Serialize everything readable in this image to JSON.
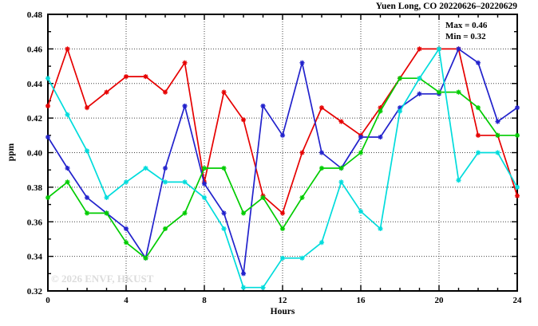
{
  "title": "Yuen Long, CO 20220626–20220629",
  "annotations": {
    "max": "Max = 0.46",
    "min": "Min = 0.32"
  },
  "watermark": "© 2026 ENVF, HKUST",
  "chart_data": {
    "type": "line",
    "title": "Yuen Long, CO 20220626–20220629",
    "xlabel": "Hours",
    "ylabel": "ppm",
    "xlim": [
      0,
      24
    ],
    "ylim": [
      0.32,
      0.48
    ],
    "grid": true,
    "legend": false,
    "x_major_ticks": [
      0,
      4,
      8,
      12,
      16,
      20,
      24
    ],
    "x_tick_labels": [
      "0",
      "4",
      "8",
      "12",
      "16",
      "20",
      "24"
    ],
    "x_minor_step": 1,
    "y_major_ticks": [
      0.32,
      0.34,
      0.36,
      0.38,
      0.4,
      0.42,
      0.44,
      0.46,
      0.48
    ],
    "y_tick_labels": [
      "0.32",
      "0.34",
      "0.36",
      "0.38",
      "0.40",
      "0.42",
      "0.44",
      "0.46",
      "0.48"
    ],
    "y_minor_step": 0.01,
    "x_grid": [
      4,
      8,
      12,
      16,
      20
    ],
    "y_grid": [
      0.34,
      0.36,
      0.38,
      0.4,
      0.42,
      0.44,
      0.46
    ],
    "x": [
      0,
      1,
      2,
      3,
      4,
      5,
      6,
      7,
      8,
      9,
      10,
      11,
      12,
      13,
      14,
      15,
      16,
      17,
      18,
      19,
      20,
      21,
      22,
      23,
      24
    ],
    "series": [
      {
        "name": "red",
        "color": "#e60000",
        "values": [
          0.427,
          0.46,
          0.426,
          0.435,
          0.444,
          0.444,
          0.435,
          0.452,
          0.383,
          0.435,
          0.419,
          0.375,
          0.365,
          0.4,
          0.426,
          0.418,
          0.41,
          0.426,
          0.443,
          0.46,
          0.46,
          0.46,
          0.41,
          0.41,
          0.375
        ]
      },
      {
        "name": "blue",
        "color": "#2222cc",
        "values": [
          0.409,
          0.391,
          0.374,
          0.365,
          0.356,
          0.339,
          0.391,
          0.427,
          0.382,
          0.365,
          0.33,
          0.427,
          0.41,
          0.452,
          0.4,
          0.391,
          0.409,
          0.409,
          0.426,
          0.434,
          0.434,
          0.46,
          0.452,
          0.418,
          0.426
        ]
      },
      {
        "name": "green",
        "color": "#00cc00",
        "values": [
          0.374,
          0.383,
          0.365,
          0.365,
          0.348,
          0.339,
          0.356,
          0.365,
          0.391,
          0.391,
          0.365,
          0.374,
          0.356,
          0.374,
          0.391,
          0.391,
          0.4,
          0.424,
          0.443,
          0.443,
          0.435,
          0.435,
          0.426,
          0.41,
          0.41
        ]
      },
      {
        "name": "cyan",
        "color": "#00dcdc",
        "values": [
          0.443,
          0.422,
          0.401,
          0.374,
          0.383,
          0.391,
          0.383,
          0.383,
          0.374,
          0.356,
          0.322,
          0.322,
          0.339,
          0.339,
          0.348,
          0.383,
          0.366,
          0.356,
          0.424,
          0.443,
          0.46,
          0.384,
          0.4,
          0.4,
          0.38
        ]
      }
    ]
  }
}
